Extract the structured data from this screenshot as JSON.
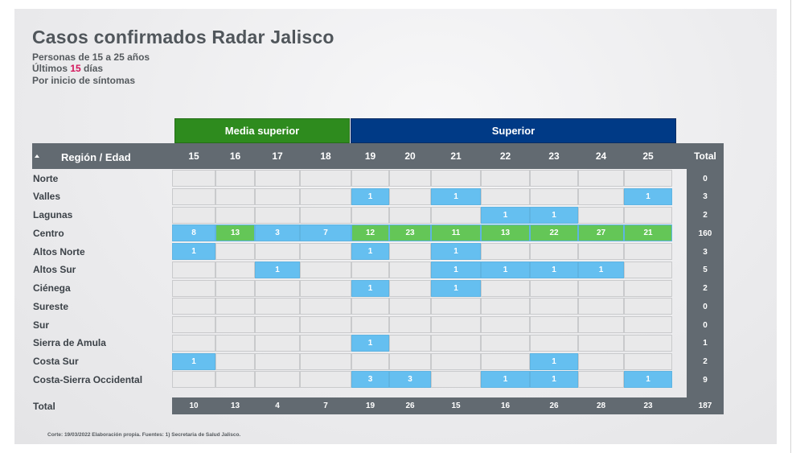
{
  "header": {
    "title": "Casos confirmados Radar Jalisco",
    "line1": "Personas de 15 a 25 años",
    "line2_pre": "Últimos ",
    "line2_num": "15",
    "line2_post": " días",
    "line3": "Por inicio de síntomas"
  },
  "groups": {
    "media": "Media superior",
    "superior": "Superior"
  },
  "colors": {
    "media_group": "#2e8b1e",
    "superior_group": "#003a86",
    "header": "#626a71",
    "blue_cell": "#65bff0",
    "green_cell": "#64c657",
    "empty_cell": "#e9e9ea",
    "highlight": "#d4145a"
  },
  "table_header": {
    "region_label": "Región / Edad",
    "total_label": "Total"
  },
  "chart_data": {
    "type": "heatmap",
    "ages": [
      "15",
      "16",
      "17",
      "18",
      "19",
      "20",
      "21",
      "22",
      "23",
      "24",
      "25"
    ],
    "rows": [
      {
        "region": "Norte",
        "values": [
          null,
          null,
          null,
          null,
          null,
          null,
          null,
          null,
          null,
          null,
          null
        ],
        "total": "0"
      },
      {
        "region": "Valles",
        "values": [
          null,
          null,
          null,
          null,
          "1",
          null,
          "1",
          null,
          null,
          null,
          "1"
        ],
        "total": "3"
      },
      {
        "region": "Lagunas",
        "values": [
          null,
          null,
          null,
          null,
          null,
          null,
          null,
          "1",
          "1",
          null,
          null
        ],
        "total": "2"
      },
      {
        "region": "Centro",
        "values": [
          "8",
          "13",
          "3",
          "7",
          "12",
          "23",
          "11",
          "13",
          "22",
          "27",
          "21"
        ],
        "total": "160"
      },
      {
        "region": "Altos Norte",
        "values": [
          "1",
          null,
          null,
          null,
          "1",
          null,
          "1",
          null,
          null,
          null,
          null
        ],
        "total": "3"
      },
      {
        "region": "Altos Sur",
        "values": [
          null,
          null,
          "1",
          null,
          null,
          null,
          "1",
          "1",
          "1",
          "1",
          null
        ],
        "total": "5"
      },
      {
        "region": "Ciénega",
        "values": [
          null,
          null,
          null,
          null,
          "1",
          null,
          "1",
          null,
          null,
          null,
          null
        ],
        "total": "2"
      },
      {
        "region": "Sureste",
        "values": [
          null,
          null,
          null,
          null,
          null,
          null,
          null,
          null,
          null,
          null,
          null
        ],
        "total": "0"
      },
      {
        "region": "Sur",
        "values": [
          null,
          null,
          null,
          null,
          null,
          null,
          null,
          null,
          null,
          null,
          null
        ],
        "total": "0"
      },
      {
        "region": "Sierra de Amula",
        "values": [
          null,
          null,
          null,
          null,
          "1",
          null,
          null,
          null,
          null,
          null,
          null
        ],
        "total": "1"
      },
      {
        "region": "Costa Sur",
        "values": [
          "1",
          null,
          null,
          null,
          null,
          null,
          null,
          null,
          "1",
          null,
          null
        ],
        "total": "2"
      },
      {
        "region": "Costa-Sierra Occidental",
        "values": [
          null,
          null,
          null,
          null,
          "3",
          "3",
          null,
          "1",
          "1",
          null,
          "1"
        ],
        "total": "9"
      }
    ],
    "column_totals_label": "Total",
    "column_totals": [
      "10",
      "13",
      "4",
      "7",
      "19",
      "26",
      "15",
      "16",
      "26",
      "28",
      "23"
    ],
    "grand_total": "187"
  },
  "footnote": "Corte: 19/03/2022  Elaboración propia.  Fuentes:  1) Secretaria de Salud Jalisco."
}
